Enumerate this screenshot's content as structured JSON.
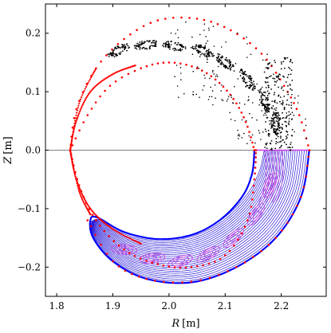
{
  "chart_data": {
    "type": "scatter",
    "title": "",
    "xlabel_var": "R",
    "xlabel_unit": "[m]",
    "ylabel_var": "Z",
    "ylabel_unit": "[m]",
    "xlim": [
      1.78,
      2.28
    ],
    "ylim": [
      -0.25,
      0.25
    ],
    "xticks": [
      1.8,
      1.9,
      2.0,
      2.1,
      2.2
    ],
    "xtick_labels": [
      "1.8",
      "1.9",
      "2.0",
      "2.1",
      "2.2"
    ],
    "yticks": [
      -0.2,
      -0.1,
      0.0,
      0.1,
      0.2
    ],
    "ytick_labels": [
      "−0.2",
      "−0.1",
      "0.0",
      "0.1",
      "0.2"
    ],
    "grid": false,
    "midplane_z": 0.0,
    "magnetic_axis": [
      2.2,
      0.0
    ],
    "series": [
      {
        "kind": "boundary-points",
        "color": "#ff0000",
        "style": "dots",
        "outer_edge": [
          [
            1.824,
            0.0
          ],
          [
            1.835,
            0.07
          ],
          [
            1.87,
            0.14
          ],
          [
            1.92,
            0.19
          ],
          [
            1.98,
            0.222
          ],
          [
            2.05,
            0.225
          ],
          [
            2.11,
            0.205
          ],
          [
            2.165,
            0.165
          ],
          [
            2.205,
            0.11
          ],
          [
            2.232,
            0.06
          ],
          [
            2.25,
            0.0
          ]
        ],
        "inner_edge": [
          [
            1.824,
            0.0
          ],
          [
            1.855,
            0.06
          ],
          [
            1.895,
            0.11
          ],
          [
            1.95,
            0.14
          ],
          [
            2.0,
            0.15
          ],
          [
            2.05,
            0.14
          ],
          [
            2.09,
            0.115
          ],
          [
            2.12,
            0.08
          ],
          [
            2.14,
            0.04
          ],
          [
            2.152,
            0.0
          ]
        ],
        "lower_edge": [
          [
            1.824,
            0.0
          ],
          [
            1.84,
            -0.06
          ],
          [
            1.87,
            -0.12
          ],
          [
            1.92,
            -0.17
          ],
          [
            1.98,
            -0.195
          ],
          [
            2.04,
            -0.2
          ],
          [
            2.1,
            -0.18
          ],
          [
            2.14,
            -0.12
          ],
          [
            2.152,
            -0.05
          ],
          [
            2.155,
            0.0
          ]
        ],
        "lower_outer_edge": [
          [
            1.855,
            -0.12
          ],
          [
            1.9,
            -0.19
          ],
          [
            1.96,
            -0.22
          ],
          [
            2.04,
            -0.225
          ],
          [
            2.12,
            -0.2
          ],
          [
            2.19,
            -0.15
          ],
          [
            2.235,
            -0.08
          ],
          [
            2.25,
            0.0
          ]
        ]
      },
      {
        "kind": "poincare-points",
        "color": "#000000",
        "style": "dots",
        "islands_center": [
          [
            1.91,
            0.17
          ],
          [
            1.96,
            0.18
          ],
          [
            2.01,
            0.178
          ],
          [
            2.06,
            0.17
          ],
          [
            2.1,
            0.15
          ],
          [
            2.14,
            0.12
          ],
          [
            2.17,
            0.085
          ],
          [
            2.19,
            0.045
          ]
        ]
      },
      {
        "kind": "separatrix",
        "color": "#0000ff",
        "style": "thick-line",
        "points": [
          [
            2.25,
            0.0
          ],
          [
            2.235,
            -0.08
          ],
          [
            2.19,
            -0.15
          ],
          [
            2.12,
            -0.2
          ],
          [
            2.04,
            -0.226
          ],
          [
            1.96,
            -0.22
          ],
          [
            1.9,
            -0.19
          ],
          [
            1.865,
            -0.15
          ],
          [
            1.86,
            -0.12
          ],
          [
            1.872,
            -0.115
          ],
          [
            1.92,
            -0.14
          ],
          [
            1.98,
            -0.152
          ],
          [
            2.04,
            -0.145
          ],
          [
            2.09,
            -0.12
          ],
          [
            2.13,
            -0.08
          ],
          [
            2.148,
            -0.04
          ],
          [
            2.152,
            0.0
          ]
        ]
      },
      {
        "kind": "flux-surfaces",
        "color": "#2a1bd6",
        "style": "thin-lines",
        "count": 24
      },
      {
        "kind": "island-chain",
        "color": "#c43be0",
        "style": "thin-lines",
        "count": 7
      }
    ]
  }
}
